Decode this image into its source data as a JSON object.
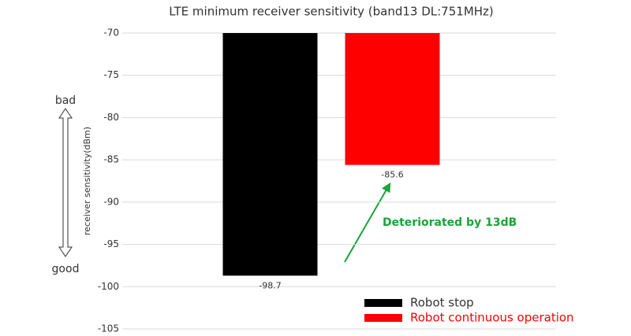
{
  "chart_data": {
    "type": "bar",
    "title": "LTE minimum receiver sensitivity (band13 DL:751MHz)",
    "y_label": "receiver sensitivity(dBm)",
    "categories": [
      null
    ],
    "series": [
      {
        "name": "Robot stop",
        "color": "#000000",
        "values": [
          -98.7
        ]
      },
      {
        "name": "Robot continuous operation",
        "color": "#ff0000",
        "values": [
          -85.6
        ]
      }
    ],
    "ylim": [
      -105,
      -70
    ],
    "yticks": [
      -105,
      -100,
      -95,
      -90,
      -85,
      -80,
      -75,
      -70
    ],
    "grid": true,
    "annotations": {
      "top": "bad",
      "bottom": "good",
      "note": "Deteriorated by 13dB"
    }
  }
}
